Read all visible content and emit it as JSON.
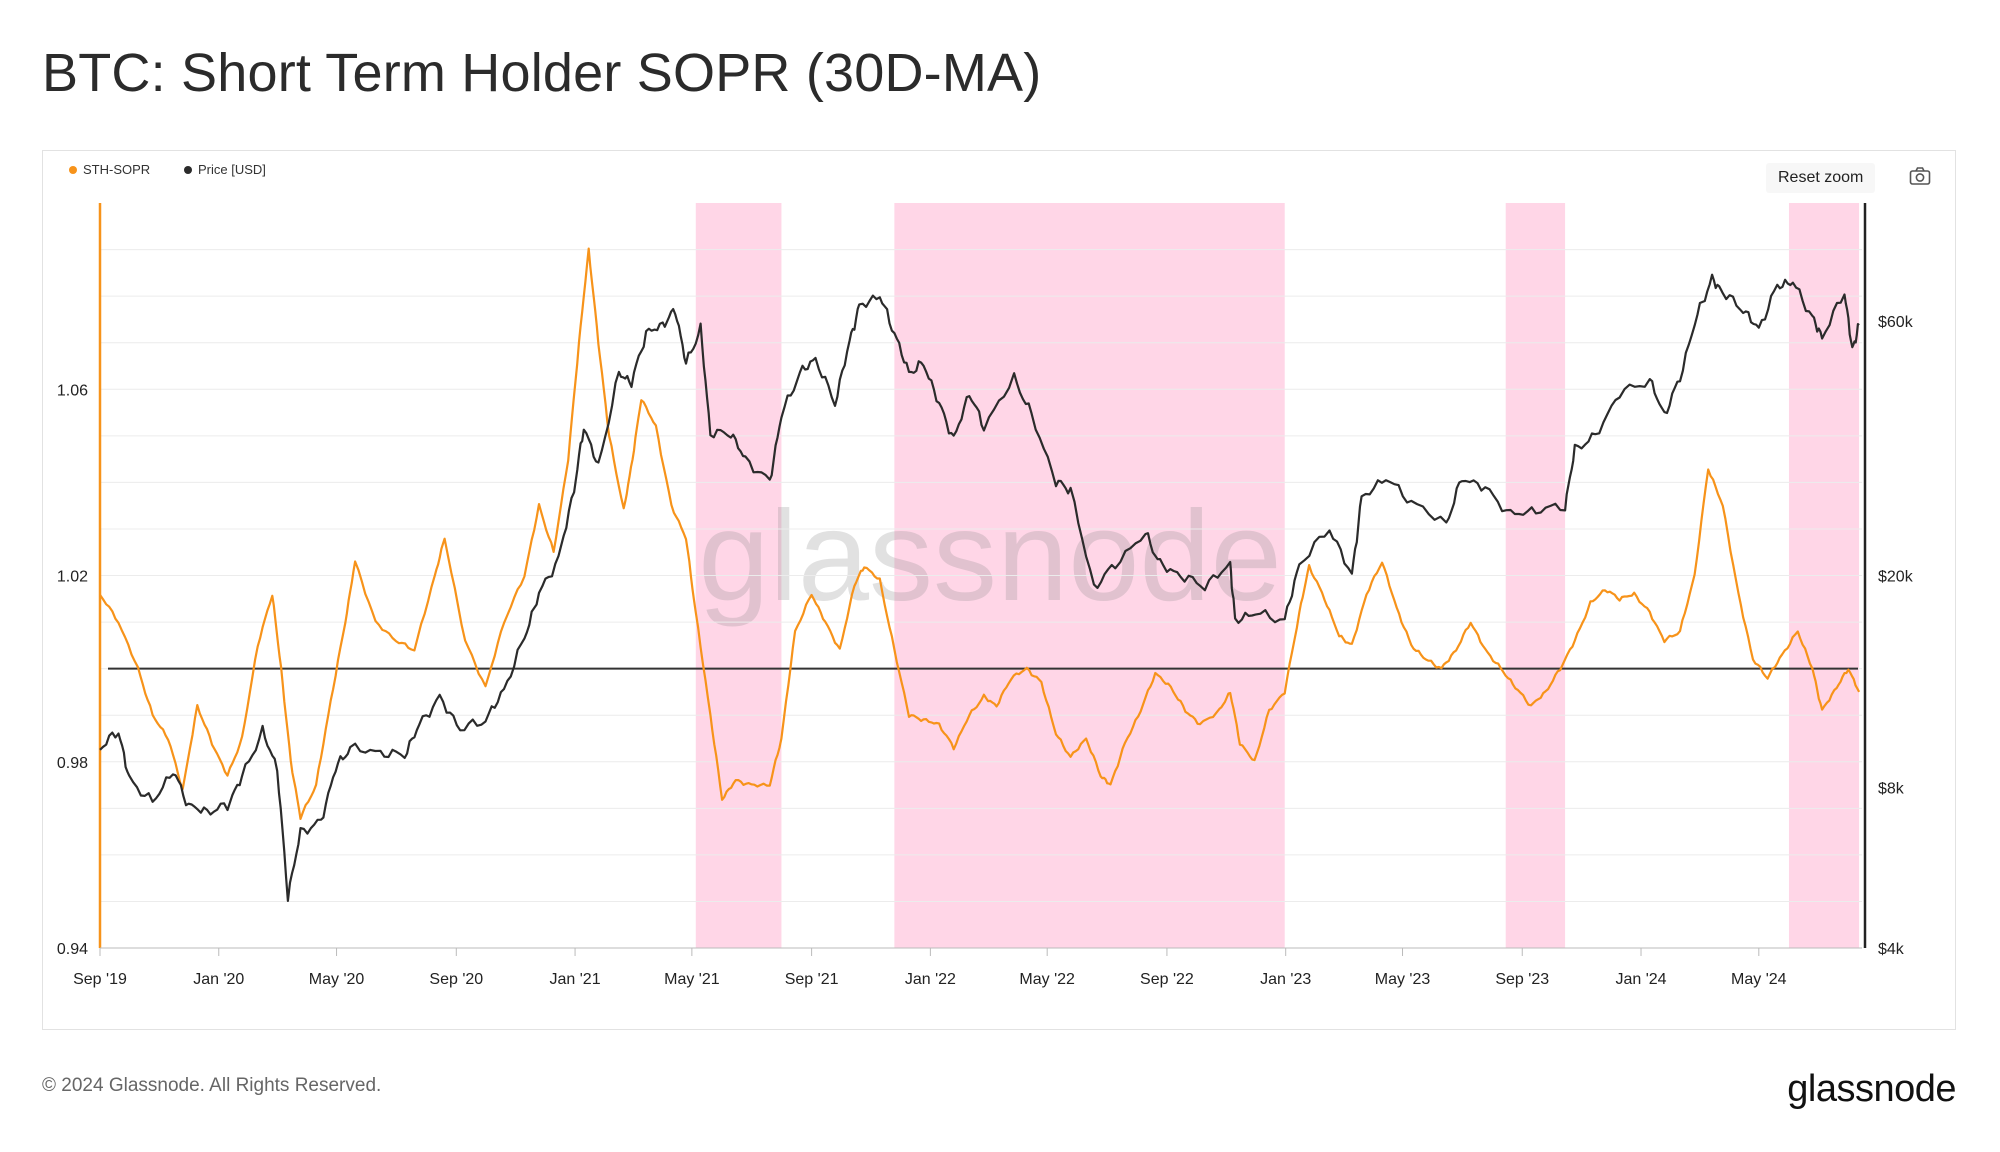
{
  "title": "BTC: Short Term Holder SOPR (30D-MA)",
  "controls": {
    "reset_zoom": "Reset zoom",
    "camera_icon": "camera-icon"
  },
  "watermark": "glassnode",
  "footer": {
    "copyright": "© 2024 Glassnode. All Rights Reserved.",
    "logo": "glassnode"
  },
  "colors": {
    "sopr": "#F7931A",
    "price": "#2B2B2B",
    "shade": "#FFD6E7",
    "baseline": "#333333"
  },
  "chart_data": {
    "type": "line",
    "title": "BTC: Short Term Holder SOPR (30D-MA)",
    "x_range": [
      "2019-09-01",
      "2024-08-15"
    ],
    "x_ticks": [
      {
        "label": "Sep '19",
        "date": "2019-09-01"
      },
      {
        "label": "Jan '20",
        "date": "2020-01-01"
      },
      {
        "label": "May '20",
        "date": "2020-05-01"
      },
      {
        "label": "Sep '20",
        "date": "2020-09-01"
      },
      {
        "label": "Jan '21",
        "date": "2021-01-01"
      },
      {
        "label": "May '21",
        "date": "2021-05-01"
      },
      {
        "label": "Sep '21",
        "date": "2021-09-01"
      },
      {
        "label": "Jan '22",
        "date": "2022-01-01"
      },
      {
        "label": "May '22",
        "date": "2022-05-01"
      },
      {
        "label": "Sep '22",
        "date": "2022-09-01"
      },
      {
        "label": "Jan '23",
        "date": "2023-01-01"
      },
      {
        "label": "May '23",
        "date": "2023-05-01"
      },
      {
        "label": "Sep '23",
        "date": "2023-09-01"
      },
      {
        "label": "Jan '24",
        "date": "2024-01-01"
      },
      {
        "label": "May '24",
        "date": "2024-05-01"
      }
    ],
    "y_left": {
      "label": "STH-SOPR",
      "range": [
        0.94,
        1.1
      ],
      "ticks": [
        "0.94",
        "0.98",
        "1.02",
        "1.06"
      ]
    },
    "y_right": {
      "label": "Price [USD]",
      "scale": "log",
      "range": [
        4000,
        100000
      ],
      "ticks": [
        {
          "label": "$4k",
          "value": 4000
        },
        {
          "label": "$8k",
          "value": 8000
        },
        {
          "label": "$20k",
          "value": 20000
        },
        {
          "label": "$60k",
          "value": 60000
        }
      ]
    },
    "baseline": 1.0,
    "shaded_periods": [
      [
        "2021-05-05",
        "2021-08-01"
      ],
      [
        "2021-11-25",
        "2022-12-31"
      ],
      [
        "2023-08-15",
        "2023-10-15"
      ],
      [
        "2024-06-01",
        "2024-08-12"
      ]
    ],
    "legend": [
      {
        "name": "STH-SOPR",
        "color": "#F7931A"
      },
      {
        "name": "Price [USD]",
        "color": "#2B2B2B"
      }
    ],
    "series": [
      {
        "name": "STH-SOPR",
        "axis": "left",
        "points": [
          [
            "2019-09-01",
            1.016
          ],
          [
            "2019-09-20",
            1.01
          ],
          [
            "2019-10-10",
            1.0
          ],
          [
            "2019-10-25",
            0.99
          ],
          [
            "2019-11-10",
            0.985
          ],
          [
            "2019-11-25",
            0.974
          ],
          [
            "2019-12-10",
            0.992
          ],
          [
            "2019-12-25",
            0.984
          ],
          [
            "2020-01-10",
            0.977
          ],
          [
            "2020-01-25",
            0.985
          ],
          [
            "2020-02-10",
            1.005
          ],
          [
            "2020-02-25",
            1.016
          ],
          [
            "2020-03-05",
            1.0
          ],
          [
            "2020-03-15",
            0.98
          ],
          [
            "2020-03-25",
            0.968
          ],
          [
            "2020-04-10",
            0.975
          ],
          [
            "2020-04-25",
            0.993
          ],
          [
            "2020-05-10",
            1.01
          ],
          [
            "2020-05-20",
            1.023
          ],
          [
            "2020-06-10",
            1.01
          ],
          [
            "2020-07-01",
            1.006
          ],
          [
            "2020-07-20",
            1.004
          ],
          [
            "2020-08-10",
            1.02
          ],
          [
            "2020-08-20",
            1.028
          ],
          [
            "2020-09-10",
            1.006
          ],
          [
            "2020-10-01",
            0.996
          ],
          [
            "2020-10-20",
            1.01
          ],
          [
            "2020-11-10",
            1.02
          ],
          [
            "2020-11-25",
            1.035
          ],
          [
            "2020-12-10",
            1.025
          ],
          [
            "2020-12-25",
            1.045
          ],
          [
            "2021-01-05",
            1.07
          ],
          [
            "2021-01-15",
            1.09
          ],
          [
            "2021-01-25",
            1.07
          ],
          [
            "2021-02-05",
            1.05
          ],
          [
            "2021-02-20",
            1.034
          ],
          [
            "2021-03-01",
            1.045
          ],
          [
            "2021-03-10",
            1.058
          ],
          [
            "2021-03-25",
            1.052
          ],
          [
            "2021-04-10",
            1.035
          ],
          [
            "2021-04-25",
            1.028
          ],
          [
            "2021-05-05",
            1.012
          ],
          [
            "2021-05-20",
            0.99
          ],
          [
            "2021-06-01",
            0.972
          ],
          [
            "2021-06-15",
            0.976
          ],
          [
            "2021-07-01",
            0.975
          ],
          [
            "2021-07-20",
            0.975
          ],
          [
            "2021-08-01",
            0.985
          ],
          [
            "2021-08-15",
            1.008
          ],
          [
            "2021-09-01",
            1.016
          ],
          [
            "2021-09-15",
            1.01
          ],
          [
            "2021-09-30",
            1.004
          ],
          [
            "2021-10-15",
            1.018
          ],
          [
            "2021-10-25",
            1.022
          ],
          [
            "2021-11-10",
            1.019
          ],
          [
            "2021-11-25",
            1.004
          ],
          [
            "2021-12-10",
            0.99
          ],
          [
            "2021-12-25",
            0.989
          ],
          [
            "2022-01-10",
            0.988
          ],
          [
            "2022-01-25",
            0.983
          ],
          [
            "2022-02-10",
            0.99
          ],
          [
            "2022-02-25",
            0.994
          ],
          [
            "2022-03-10",
            0.992
          ],
          [
            "2022-03-25",
            0.998
          ],
          [
            "2022-04-10",
            1.0
          ],
          [
            "2022-04-25",
            0.997
          ],
          [
            "2022-05-10",
            0.986
          ],
          [
            "2022-05-25",
            0.981
          ],
          [
            "2022-06-10",
            0.985
          ],
          [
            "2022-06-25",
            0.977
          ],
          [
            "2022-07-05",
            0.975
          ],
          [
            "2022-07-20",
            0.984
          ],
          [
            "2022-08-05",
            0.991
          ],
          [
            "2022-08-20",
            0.999
          ],
          [
            "2022-09-05",
            0.996
          ],
          [
            "2022-09-20",
            0.991
          ],
          [
            "2022-10-05",
            0.988
          ],
          [
            "2022-10-25",
            0.991
          ],
          [
            "2022-11-05",
            0.995
          ],
          [
            "2022-11-15",
            0.984
          ],
          [
            "2022-11-30",
            0.98
          ],
          [
            "2022-12-15",
            0.991
          ],
          [
            "2022-12-31",
            0.995
          ],
          [
            "2023-01-15",
            1.012
          ],
          [
            "2023-01-25",
            1.022
          ],
          [
            "2023-02-10",
            1.015
          ],
          [
            "2023-02-25",
            1.007
          ],
          [
            "2023-03-10",
            1.005
          ],
          [
            "2023-03-25",
            1.016
          ],
          [
            "2023-04-10",
            1.023
          ],
          [
            "2023-04-25",
            1.013
          ],
          [
            "2023-05-10",
            1.005
          ],
          [
            "2023-05-25",
            1.002
          ],
          [
            "2023-06-10",
            1.0
          ],
          [
            "2023-06-25",
            1.004
          ],
          [
            "2023-07-10",
            1.01
          ],
          [
            "2023-07-25",
            1.004
          ],
          [
            "2023-08-10",
            1.0
          ],
          [
            "2023-08-25",
            0.996
          ],
          [
            "2023-09-10",
            0.992
          ],
          [
            "2023-09-25",
            0.995
          ],
          [
            "2023-10-10",
            1.0
          ],
          [
            "2023-10-25",
            1.006
          ],
          [
            "2023-11-10",
            1.014
          ],
          [
            "2023-11-25",
            1.017
          ],
          [
            "2023-12-10",
            1.015
          ],
          [
            "2023-12-25",
            1.016
          ],
          [
            "2024-01-10",
            1.012
          ],
          [
            "2024-01-25",
            1.006
          ],
          [
            "2024-02-10",
            1.008
          ],
          [
            "2024-02-25",
            1.02
          ],
          [
            "2024-03-10",
            1.043
          ],
          [
            "2024-03-25",
            1.035
          ],
          [
            "2024-04-10",
            1.016
          ],
          [
            "2024-04-25",
            1.002
          ],
          [
            "2024-05-10",
            0.998
          ],
          [
            "2024-05-25",
            1.003
          ],
          [
            "2024-06-10",
            1.008
          ],
          [
            "2024-06-25",
            1.0
          ],
          [
            "2024-07-05",
            0.991
          ],
          [
            "2024-07-20",
            0.996
          ],
          [
            "2024-08-01",
            1.0
          ],
          [
            "2024-08-12",
            0.995
          ]
        ]
      },
      {
        "name": "Price [USD]",
        "axis": "right",
        "points": [
          [
            "2019-09-01",
            9500
          ],
          [
            "2019-09-20",
            10200
          ],
          [
            "2019-10-01",
            8300
          ],
          [
            "2019-10-25",
            7500
          ],
          [
            "2019-11-15",
            8600
          ],
          [
            "2019-12-01",
            7400
          ],
          [
            "2019-12-20",
            7200
          ],
          [
            "2020-01-10",
            7400
          ],
          [
            "2020-01-25",
            8400
          ],
          [
            "2020-02-15",
            10200
          ],
          [
            "2020-03-01",
            8700
          ],
          [
            "2020-03-12",
            5000
          ],
          [
            "2020-03-25",
            6600
          ],
          [
            "2020-04-15",
            6900
          ],
          [
            "2020-04-30",
            8700
          ],
          [
            "2020-05-15",
            9500
          ],
          [
            "2020-06-15",
            9300
          ],
          [
            "2020-07-10",
            9200
          ],
          [
            "2020-07-25",
            10500
          ],
          [
            "2020-08-15",
            11800
          ],
          [
            "2020-09-05",
            10300
          ],
          [
            "2020-10-01",
            10700
          ],
          [
            "2020-10-20",
            12200
          ],
          [
            "2020-11-10",
            15300
          ],
          [
            "2020-11-25",
            18500
          ],
          [
            "2020-12-15",
            21500
          ],
          [
            "2020-12-31",
            29000
          ],
          [
            "2021-01-10",
            38000
          ],
          [
            "2021-01-25",
            32000
          ],
          [
            "2021-02-15",
            48000
          ],
          [
            "2021-02-28",
            46000
          ],
          [
            "2021-03-15",
            57000
          ],
          [
            "2021-04-01",
            59000
          ],
          [
            "2021-04-14",
            63000
          ],
          [
            "2021-04-25",
            50000
          ],
          [
            "2021-05-10",
            58000
          ],
          [
            "2021-05-20",
            37000
          ],
          [
            "2021-06-10",
            37000
          ],
          [
            "2021-06-25",
            33000
          ],
          [
            "2021-07-20",
            30000
          ],
          [
            "2021-08-01",
            40000
          ],
          [
            "2021-08-20",
            48000
          ],
          [
            "2021-09-05",
            51000
          ],
          [
            "2021-09-25",
            42000
          ],
          [
            "2021-10-10",
            55000
          ],
          [
            "2021-10-20",
            64000
          ],
          [
            "2021-11-10",
            67000
          ],
          [
            "2021-11-25",
            57000
          ],
          [
            "2021-12-10",
            48000
          ],
          [
            "2021-12-25",
            50000
          ],
          [
            "2022-01-10",
            42000
          ],
          [
            "2022-01-25",
            36000
          ],
          [
            "2022-02-10",
            44000
          ],
          [
            "2022-02-25",
            38000
          ],
          [
            "2022-03-28",
            47000
          ],
          [
            "2022-04-15",
            40000
          ],
          [
            "2022-05-10",
            30000
          ],
          [
            "2022-05-25",
            29000
          ],
          [
            "2022-06-18",
            19000
          ],
          [
            "2022-07-10",
            21000
          ],
          [
            "2022-08-10",
            24000
          ],
          [
            "2022-08-25",
            21000
          ],
          [
            "2022-09-15",
            20000
          ],
          [
            "2022-10-10",
            19100
          ],
          [
            "2022-11-05",
            21000
          ],
          [
            "2022-11-10",
            16500
          ],
          [
            "2022-12-01",
            17000
          ],
          [
            "2022-12-31",
            16500
          ],
          [
            "2023-01-15",
            21000
          ],
          [
            "2023-02-15",
            24500
          ],
          [
            "2023-03-10",
            20000
          ],
          [
            "2023-03-20",
            28000
          ],
          [
            "2023-04-14",
            30500
          ],
          [
            "2023-05-10",
            27500
          ],
          [
            "2023-06-15",
            25000
          ],
          [
            "2023-07-01",
            30500
          ],
          [
            "2023-07-25",
            29200
          ],
          [
            "2023-08-20",
            26000
          ],
          [
            "2023-09-15",
            26500
          ],
          [
            "2023-10-15",
            27000
          ],
          [
            "2023-10-25",
            34500
          ],
          [
            "2023-11-15",
            36500
          ],
          [
            "2023-12-10",
            44000
          ],
          [
            "2024-01-10",
            46500
          ],
          [
            "2024-01-25",
            40000
          ],
          [
            "2024-02-10",
            47000
          ],
          [
            "2024-02-28",
            62000
          ],
          [
            "2024-03-14",
            72000
          ],
          [
            "2024-03-25",
            68000
          ],
          [
            "2024-04-15",
            63000
          ],
          [
            "2024-05-01",
            58000
          ],
          [
            "2024-05-20",
            70000
          ],
          [
            "2024-06-05",
            71000
          ],
          [
            "2024-06-25",
            61000
          ],
          [
            "2024-07-05",
            56000
          ],
          [
            "2024-07-28",
            68000
          ],
          [
            "2024-08-05",
            53000
          ],
          [
            "2024-08-12",
            59000
          ]
        ]
      }
    ]
  }
}
